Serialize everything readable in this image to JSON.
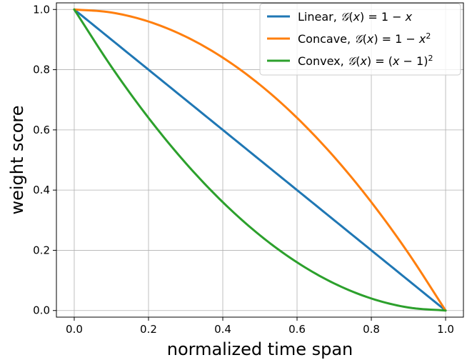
{
  "chart_data": {
    "type": "line",
    "title": "",
    "xlabel": "normalized time span",
    "ylabel": "weight score",
    "xlim": [
      -0.048,
      1.048
    ],
    "ylim": [
      -0.022,
      1.022
    ],
    "xticks": [
      "0.0",
      "0.2",
      "0.4",
      "0.6",
      "0.8",
      "1.0"
    ],
    "yticks": [
      "0.0",
      "0.2",
      "0.4",
      "0.6",
      "0.8",
      "1.0"
    ],
    "grid": true,
    "legend_position": "upper-right",
    "x": [
      0.0,
      0.1,
      0.2,
      0.3,
      0.4,
      0.5,
      0.6,
      0.7,
      0.8,
      0.9,
      1.0
    ],
    "series": [
      {
        "name": "Linear, 𝒢(x) = 1 − x",
        "legend_parts": [
          [
            "Linear, ",
            ""
          ],
          [
            "𝒢",
            "cal"
          ],
          [
            "(",
            ""
          ],
          [
            "x",
            "it"
          ],
          [
            ") = 1 − ",
            ""
          ],
          [
            "x",
            "it"
          ]
        ],
        "color": "#1f77b4",
        "values": [
          1.0,
          0.9,
          0.8,
          0.7,
          0.6,
          0.5,
          0.4,
          0.3,
          0.2,
          0.1,
          0.0
        ]
      },
      {
        "name": "Concave, 𝒢(x) = 1 − x²",
        "legend_parts": [
          [
            "Concave, ",
            ""
          ],
          [
            "𝒢",
            "cal"
          ],
          [
            "(",
            ""
          ],
          [
            "x",
            "it"
          ],
          [
            ") = 1 − ",
            ""
          ],
          [
            "x",
            "it"
          ],
          [
            "2",
            "sup"
          ]
        ],
        "color": "#ff7f0e",
        "values": [
          1.0,
          0.99,
          0.96,
          0.91,
          0.84,
          0.75,
          0.64,
          0.51,
          0.36,
          0.19,
          0.0
        ]
      },
      {
        "name": "Convex, 𝒢(x) = (x − 1)²",
        "legend_parts": [
          [
            "Convex, ",
            ""
          ],
          [
            "𝒢",
            "cal"
          ],
          [
            "(",
            ""
          ],
          [
            "x",
            "it"
          ],
          [
            ") = (",
            ""
          ],
          [
            "x",
            "it"
          ],
          [
            " − 1)",
            ""
          ],
          [
            "2",
            "sup"
          ]
        ],
        "color": "#2ca02c",
        "values": [
          1.0,
          0.81,
          0.64,
          0.49,
          0.36,
          0.25,
          0.16,
          0.09,
          0.04,
          0.01,
          0.0
        ]
      }
    ]
  }
}
